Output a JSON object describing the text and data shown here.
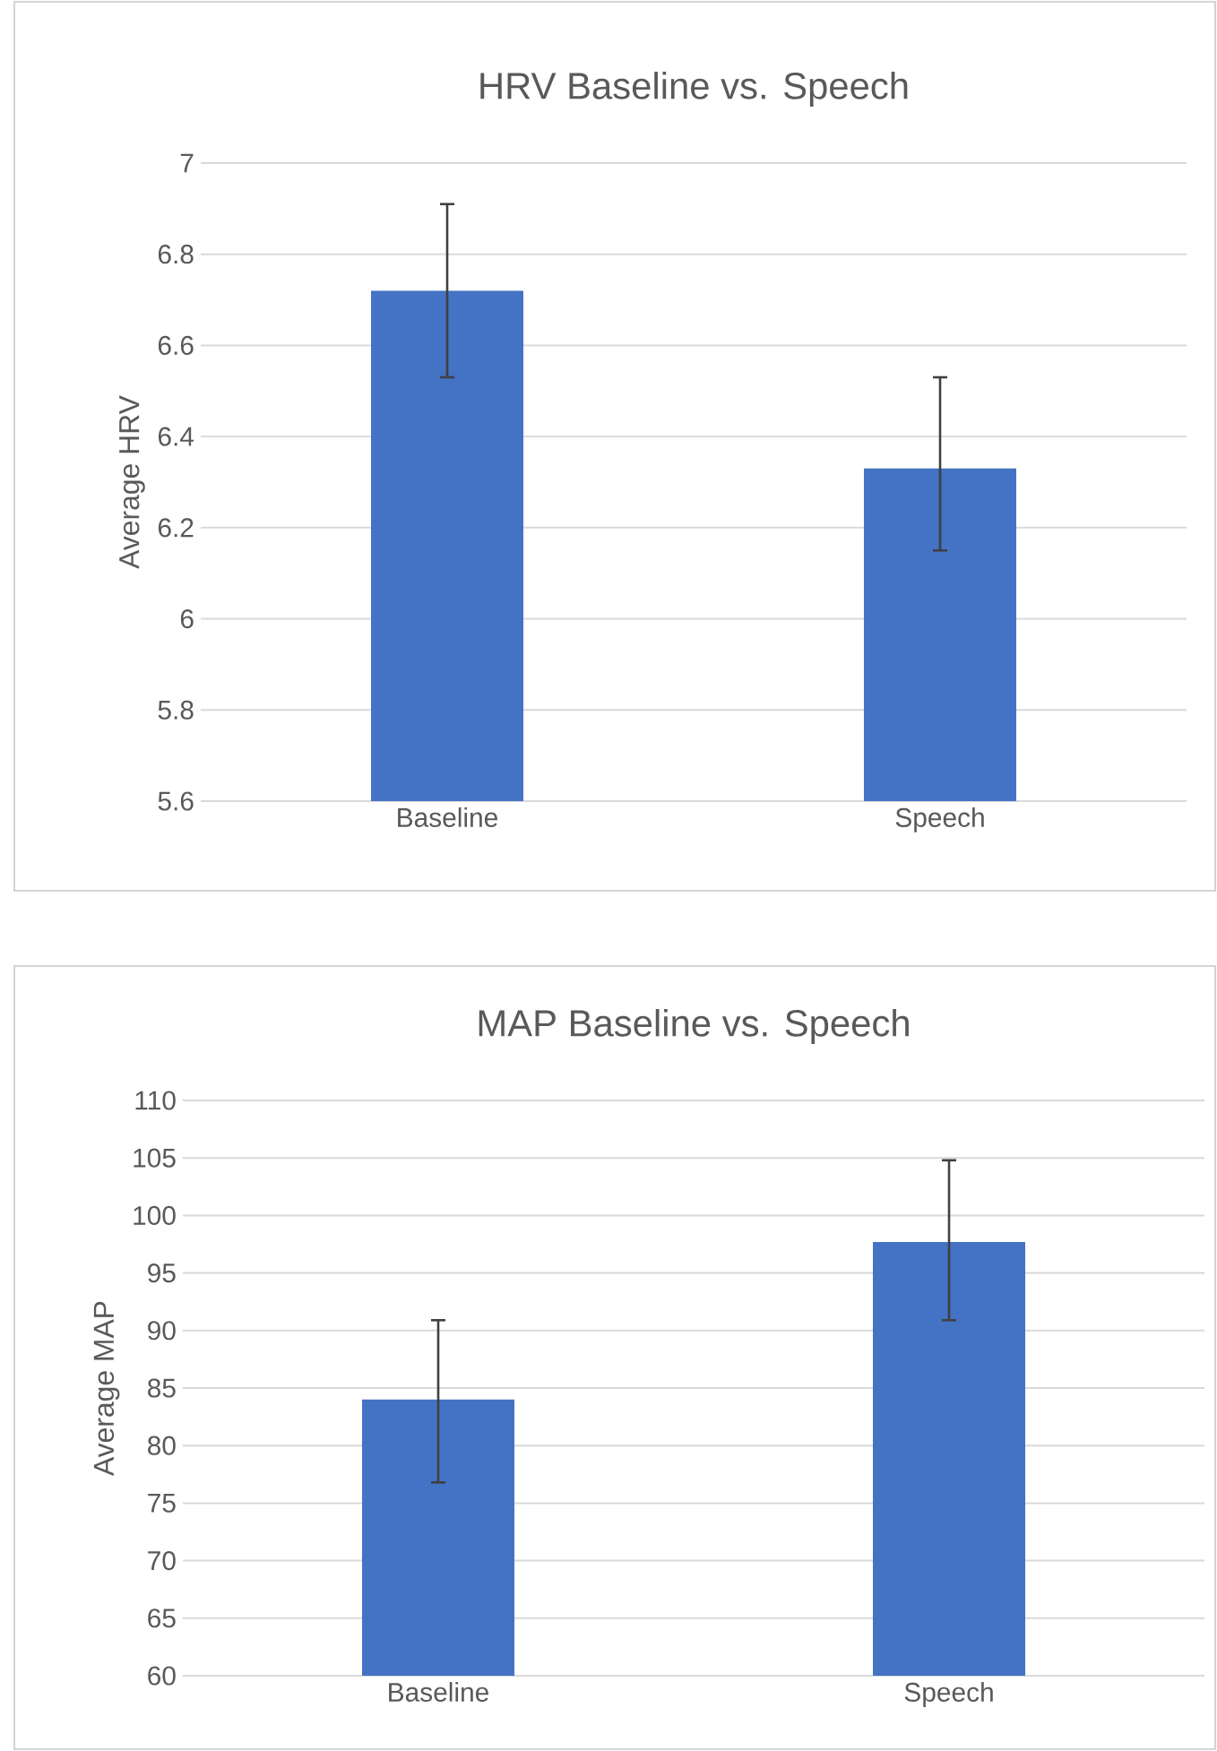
{
  "chart_data": [
    {
      "type": "bar",
      "title": "HRV Baseline vs. Speech",
      "ylabel": "Average HRV",
      "categories": [
        "Baseline",
        "Speech"
      ],
      "values": [
        6.72,
        6.33
      ],
      "errors": [
        [
          6.53,
          6.91
        ],
        [
          6.15,
          6.53
        ]
      ],
      "color": "#4472c4",
      "ylim": [
        5.6,
        7
      ],
      "yticks": [
        5.6,
        5.8,
        6,
        6.2,
        6.4,
        6.6,
        6.8,
        7
      ],
      "grid": "y"
    },
    {
      "type": "bar",
      "title": "MAP Baseline vs. Speech",
      "ylabel": "Average MAP",
      "categories": [
        "Baseline",
        "Speech"
      ],
      "values": [
        84,
        97.7
      ],
      "errors": [
        [
          76.8,
          90.9
        ],
        [
          90.9,
          104.8
        ]
      ],
      "color": "#4472c4",
      "ylim": [
        60,
        110
      ],
      "yticks": [
        60,
        65,
        70,
        75,
        80,
        85,
        90,
        95,
        100,
        105,
        110
      ],
      "grid": "y"
    }
  ]
}
